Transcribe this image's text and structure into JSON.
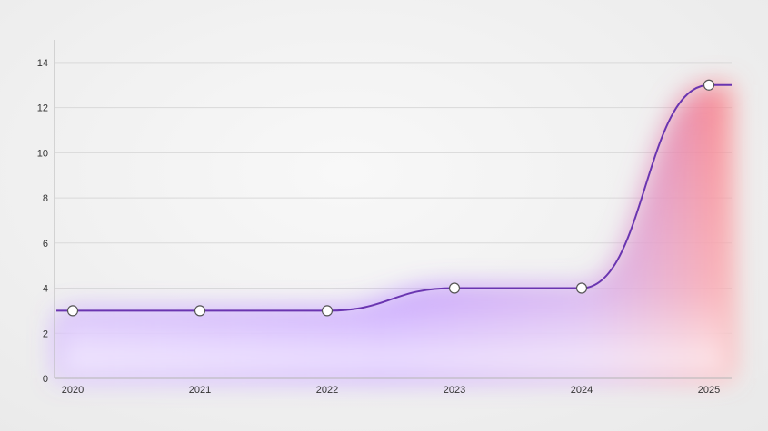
{
  "chart_data": {
    "type": "area",
    "title": "",
    "xlabel": "",
    "ylabel": "",
    "categories": [
      "2020",
      "2021",
      "2022",
      "2023",
      "2024",
      "2025"
    ],
    "series": [
      {
        "values": [
          3,
          3,
          3,
          4,
          4,
          13
        ]
      }
    ],
    "ylim": [
      0,
      15
    ],
    "yticks": [
      "0",
      "2",
      "4",
      "6",
      "8",
      "10",
      "12",
      "14"
    ],
    "grid": true,
    "legend": "none",
    "colors": {
      "line": "#6a35b0",
      "fill_main": "#a468ff",
      "fill_high": "#ff7b7b",
      "marker_fill": "#ffffff",
      "marker_stroke": "#555555"
    }
  }
}
